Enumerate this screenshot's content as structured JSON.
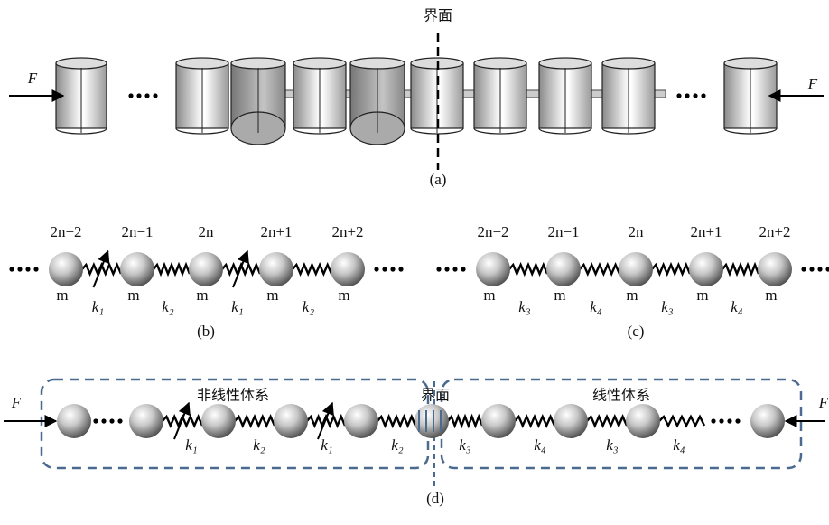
{
  "panel_a": {
    "interface_label": "界面",
    "force_left": "F",
    "force_right": "F",
    "caption": "(a)"
  },
  "panel_b": {
    "site_labels": [
      "2n−2",
      "2n−1",
      "2n",
      "2n+1",
      "2n+2"
    ],
    "mass_labels": [
      "m",
      "m",
      "m",
      "m",
      "m"
    ],
    "spring_labels": [
      "k₁",
      "k₂",
      "k₁",
      "k₂"
    ],
    "caption": "(b)"
  },
  "panel_c": {
    "site_labels": [
      "2n−2",
      "2n−1",
      "2n",
      "2n+1",
      "2n+2"
    ],
    "mass_labels": [
      "m",
      "m",
      "m",
      "m",
      "m"
    ],
    "spring_labels": [
      "k₃",
      "k₄",
      "k₃",
      "k₄"
    ],
    "caption": "(c)"
  },
  "panel_d": {
    "nonlinear_label": "非线性体系",
    "interface_label": "界面",
    "linear_label": "线性体系",
    "force_left": "F",
    "force_right": "F",
    "spring_labels": [
      "k₁",
      "k₂",
      "k₁",
      "k₂",
      "k₃",
      "k₄",
      "k₃",
      "k₄"
    ],
    "caption": "(d)"
  }
}
